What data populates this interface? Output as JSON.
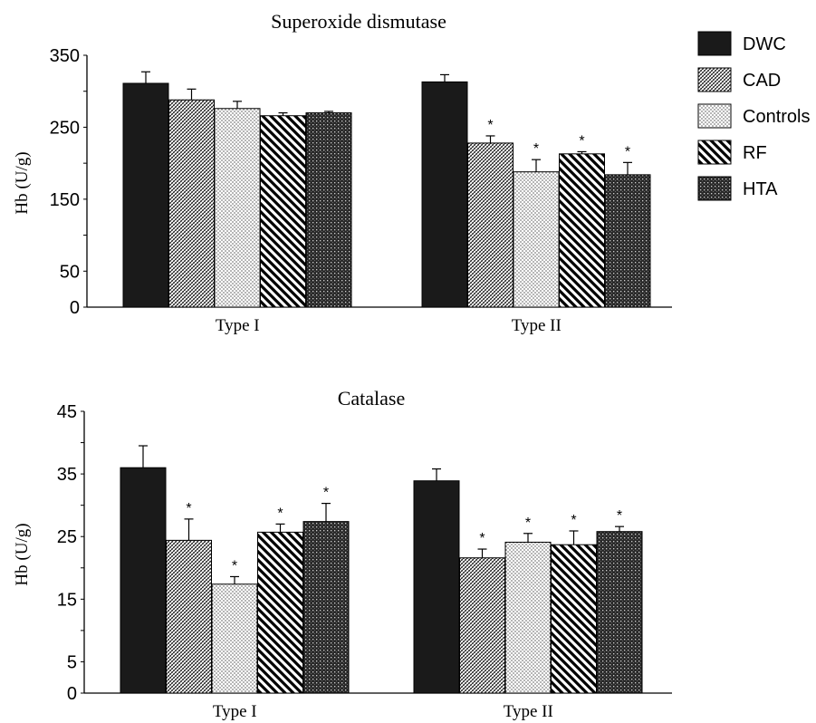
{
  "legend": [
    {
      "name": "DWC",
      "pattern": "solid"
    },
    {
      "name": "CAD",
      "pattern": "crosshatch"
    },
    {
      "name": "Controls",
      "pattern": "dots"
    },
    {
      "name": "RF",
      "pattern": "diagonal"
    },
    {
      "name": "HTA",
      "pattern": "dense"
    }
  ],
  "colors": {
    "bar_dark": "#1a1a1a",
    "ink": "#000000",
    "background": "#ffffff"
  },
  "significance_marker": "*",
  "chart_data": [
    {
      "type": "bar",
      "title": "Superoxide  dismutase",
      "ylabel": "Hb (U/g)",
      "ylim": [
        0,
        350
      ],
      "yticks": [
        0,
        50,
        150,
        250,
        350
      ],
      "categories": [
        "Type I",
        "Type II"
      ],
      "series": [
        {
          "name": "DWC",
          "values": [
            311,
            313
          ],
          "errors": [
            16,
            10
          ],
          "significant": [
            false,
            false
          ]
        },
        {
          "name": "CAD",
          "values": [
            288,
            228
          ],
          "errors": [
            15,
            10
          ],
          "significant": [
            false,
            true
          ]
        },
        {
          "name": "Controls",
          "values": [
            276,
            188
          ],
          "errors": [
            10,
            17
          ],
          "significant": [
            false,
            true
          ]
        },
        {
          "name": "RF",
          "values": [
            266,
            213
          ],
          "errors": [
            4,
            3
          ],
          "significant": [
            false,
            true
          ]
        },
        {
          "name": "HTA",
          "values": [
            270,
            184
          ],
          "errors": [
            2,
            17
          ],
          "significant": [
            false,
            true
          ]
        }
      ]
    },
    {
      "type": "bar",
      "title": "Catalase",
      "ylabel": "Hb (U/g)",
      "ylim": [
        0,
        45
      ],
      "yticks": [
        0,
        5,
        15,
        25,
        35,
        45
      ],
      "categories": [
        "Type I",
        "Type II"
      ],
      "series": [
        {
          "name": "DWC",
          "values": [
            36.0,
            33.9
          ],
          "errors": [
            3.5,
            1.9
          ],
          "significant": [
            false,
            false
          ]
        },
        {
          "name": "CAD",
          "values": [
            24.4,
            21.6
          ],
          "errors": [
            3.4,
            1.4
          ],
          "significant": [
            true,
            true
          ]
        },
        {
          "name": "Controls",
          "values": [
            17.4,
            24.1
          ],
          "errors": [
            1.2,
            1.4
          ],
          "significant": [
            true,
            true
          ]
        },
        {
          "name": "RF",
          "values": [
            25.7,
            23.7
          ],
          "errors": [
            1.3,
            2.2
          ],
          "significant": [
            true,
            true
          ]
        },
        {
          "name": "HTA",
          "values": [
            27.4,
            25.8
          ],
          "errors": [
            2.9,
            0.8
          ],
          "significant": [
            true,
            true
          ]
        }
      ]
    }
  ]
}
